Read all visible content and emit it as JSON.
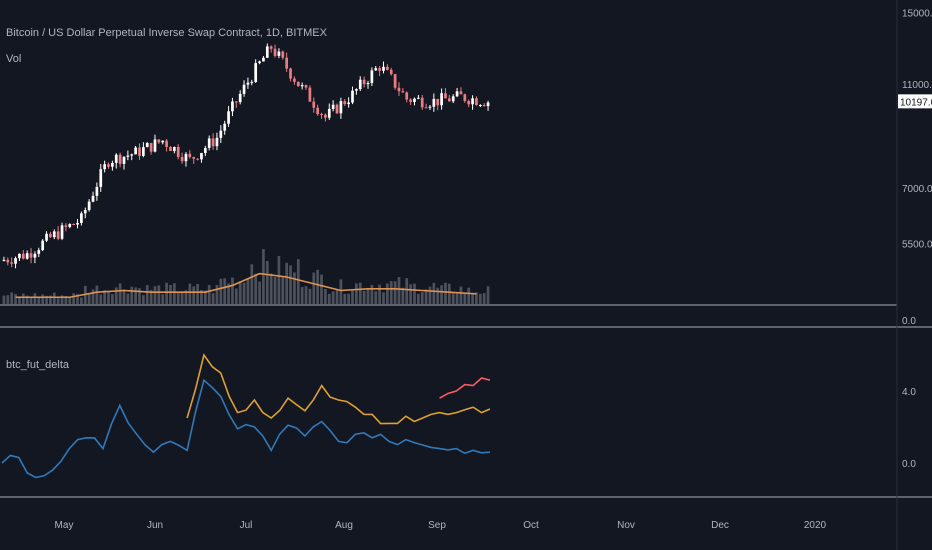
{
  "chart_data": [
    {
      "type": "candlestick",
      "title": "Bitcoin / US Dollar Perpetual Inverse Swap Contract, 1D, BITMEX",
      "indicator_label": "Vol",
      "y_scale": "log",
      "ylim": [
        4300,
        15300
      ],
      "yticks": [
        "15000.0",
        "11000.0",
        "7000.0",
        "5500.0"
      ],
      "ytick_values": [
        15000,
        11000,
        7000,
        5500
      ],
      "last_price": "10197.0",
      "last_value": 10197,
      "colors": {
        "up": "#ffffff",
        "down": "#ef7b82",
        "volume": "#5d606b",
        "volume_ma": "#e0944f"
      },
      "ohlc_weekly": [
        {
          "o": 5100,
          "c": 5250
        },
        {
          "o": 5250,
          "c": 5700
        },
        {
          "o": 5700,
          "c": 6100
        },
        {
          "o": 6100,
          "c": 7900
        },
        {
          "o": 7900,
          "c": 8150
        },
        {
          "o": 8150,
          "c": 8600
        },
        {
          "o": 8600,
          "c": 7900
        },
        {
          "o": 7900,
          "c": 8700
        },
        {
          "o": 8700,
          "c": 10800
        },
        {
          "o": 10800,
          "c": 12900
        },
        {
          "o": 12900,
          "c": 11000
        },
        {
          "o": 11000,
          "c": 9500
        },
        {
          "o": 9500,
          "c": 10500
        },
        {
          "o": 10500,
          "c": 11900
        },
        {
          "o": 11900,
          "c": 10300
        },
        {
          "o": 10300,
          "c": 10200
        },
        {
          "o": 10200,
          "c": 10400
        },
        {
          "o": 10400,
          "c": 10197
        }
      ],
      "volume_ma_levels": [
        0.2,
        0.2,
        0.2,
        0.35,
        0.4,
        0.35,
        0.35,
        0.35,
        0.55,
        0.9,
        0.8,
        0.6,
        0.4,
        0.45,
        0.45,
        0.4,
        0.35,
        0.3
      ]
    },
    {
      "type": "line",
      "title": "btc_fut_delta",
      "ylim": [
        -1.5,
        7
      ],
      "yticks": [
        "4.0",
        "0.0"
      ],
      "ytick_values": [
        4,
        0
      ],
      "series": [
        {
          "color": "#3179b9",
          "values": [
            0,
            0.3,
            -0.8,
            -0.4,
            0.8,
            1.4,
            0.8,
            3.2,
            1.6,
            0.6,
            1.2,
            0.7,
            4.6,
            3.7,
            1.9,
            2.0,
            0.7,
            2.1,
            1.5,
            2.3,
            1.2,
            1.6,
            1.4,
            1.2,
            1.3,
            1.0,
            0.8,
            0.8,
            0.7,
            0.6
          ]
        },
        {
          "color": "#e0a02c",
          "start_index": 11,
          "values": [
            2.5,
            6.0,
            5.0,
            2.8,
            3.5,
            2.5,
            3.6,
            2.9,
            4.3,
            3.5,
            3.1,
            2.7,
            2.2,
            2.6,
            2.5,
            2.8,
            2.8,
            3.1,
            3.0
          ]
        },
        {
          "color": "#ff5b61",
          "start_index": 26,
          "values": [
            3.6,
            4.0,
            4.3,
            4.6
          ]
        }
      ]
    }
  ],
  "x_axis": {
    "labels": [
      "May",
      "Jun",
      "Jul",
      "Aug",
      "Sep",
      "Oct",
      "Nov",
      "Dec",
      "2020"
    ]
  }
}
